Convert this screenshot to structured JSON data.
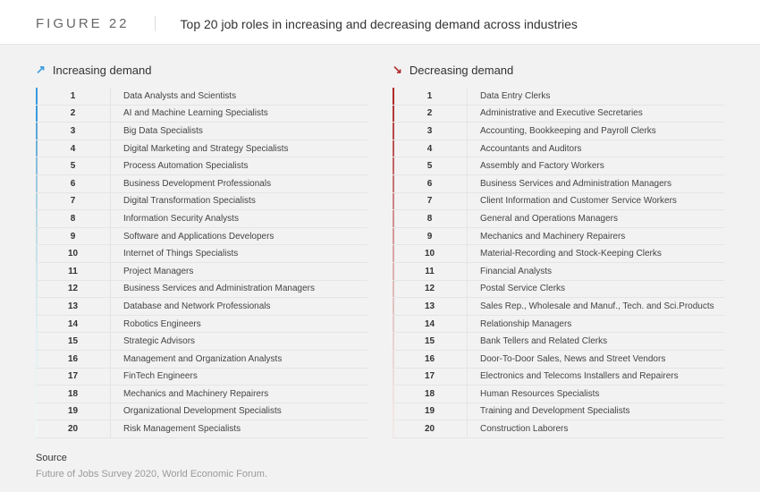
{
  "figure_label": "FIGURE 22",
  "figure_title": "Top 20 job roles in increasing and decreasing demand across industries",
  "increasing": {
    "arrow": "↗",
    "title": "Increasing demand",
    "arrow_color": "#3a9bdc",
    "items": [
      {
        "rank": "1",
        "role": "Data Analysts and Scientists",
        "tick": "#3a9bdc"
      },
      {
        "rank": "2",
        "role": "AI and Machine Learning Specialists",
        "tick": "#3a9bdc"
      },
      {
        "rank": "3",
        "role": "Big Data Specialists",
        "tick": "#5aa8d8"
      },
      {
        "rank": "4",
        "role": "Digital Marketing and Strategy Specialists",
        "tick": "#6fb2da"
      },
      {
        "rank": "5",
        "role": "Process Automation Specialists",
        "tick": "#85bedd"
      },
      {
        "rank": "6",
        "role": "Business Development Professionals",
        "tick": "#9bcae0"
      },
      {
        "rank": "7",
        "role": "Digital Transformation Specialists",
        "tick": "#aad2e3"
      },
      {
        "rank": "8",
        "role": "Information Security Analysts",
        "tick": "#b6d9e6"
      },
      {
        "rank": "9",
        "role": "Software and Applications Developers",
        "tick": "#c0dee8"
      },
      {
        "rank": "10",
        "role": "Internet of Things Specialists",
        "tick": "#c8e2ea"
      },
      {
        "rank": "11",
        "role": "Project Managers",
        "tick": "#cfe6ec"
      },
      {
        "rank": "12",
        "role": "Business Services and Administration Managers",
        "tick": "#d5e9ee"
      },
      {
        "rank": "13",
        "role": "Database and Network Professionals",
        "tick": "#daecef"
      },
      {
        "rank": "14",
        "role": "Robotics Engineers",
        "tick": "#dfeff1"
      },
      {
        "rank": "15",
        "role": "Strategic Advisors",
        "tick": "#e3f1f2"
      },
      {
        "rank": "16",
        "role": "Management and Organization Analysts",
        "tick": "#e6f2f3"
      },
      {
        "rank": "17",
        "role": "FinTech Engineers",
        "tick": "#e9f4f4"
      },
      {
        "rank": "18",
        "role": "Mechanics and Machinery Repairers",
        "tick": "#ecf5f5"
      },
      {
        "rank": "19",
        "role": "Organizational Development Specialists",
        "tick": "#eef6f6"
      },
      {
        "rank": "20",
        "role": "Risk Management Specialists",
        "tick": "#f0f7f7"
      }
    ]
  },
  "decreasing": {
    "arrow": "↘",
    "title": "Decreasing demand",
    "arrow_color": "#b02a2a",
    "items": [
      {
        "rank": "1",
        "role": "Data Entry Clerks",
        "tick": "#b02a2a"
      },
      {
        "rank": "2",
        "role": "Administrative and Executive Secretaries",
        "tick": "#b43838"
      },
      {
        "rank": "3",
        "role": "Accounting,  Bookkeeping and Payroll Clerks",
        "tick": "#b94747"
      },
      {
        "rank": "4",
        "role": "Accountants and Auditors",
        "tick": "#be5656"
      },
      {
        "rank": "5",
        "role": "Assembly and Factory Workers",
        "tick": "#c36565"
      },
      {
        "rank": "6",
        "role": "Business Services and Administration Managers",
        "tick": "#c87474"
      },
      {
        "rank": "7",
        "role": "Client Information and Customer Service Workers",
        "tick": "#cd8282"
      },
      {
        "rank": "8",
        "role": "General and Operations Managers",
        "tick": "#d18f8f"
      },
      {
        "rank": "9",
        "role": "Mechanics and Machinery Repairers",
        "tick": "#d59b9b"
      },
      {
        "rank": "10",
        "role": "Material-Recording and Stock-Keeping Clerks",
        "tick": "#d9a6a6"
      },
      {
        "rank": "11",
        "role": "Financial Analysts",
        "tick": "#ddb1b1"
      },
      {
        "rank": "12",
        "role": "Postal Service Clerks",
        "tick": "#e0baba"
      },
      {
        "rank": "13",
        "role": "Sales Rep., Wholesale and Manuf., Tech. and Sci.Products",
        "tick": "#e3c2c2"
      },
      {
        "rank": "14",
        "role": "Relationship Managers",
        "tick": "#e6caca"
      },
      {
        "rank": "15",
        "role": "Bank Tellers and Related Clerks",
        "tick": "#e9d1d1"
      },
      {
        "rank": "16",
        "role": "Door-To-Door Sales, News and Street Vendors",
        "tick": "#ebd7d7"
      },
      {
        "rank": "17",
        "role": "Electronics and Telecoms Installers and Repairers",
        "tick": "#eddcdc"
      },
      {
        "rank": "18",
        "role": "Human Resources Specialists",
        "tick": "#efe1e1"
      },
      {
        "rank": "19",
        "role": "Training and Development Specialists",
        "tick": "#f1e5e5"
      },
      {
        "rank": "20",
        "role": "Construction Laborers",
        "tick": "#f2e8e8"
      }
    ]
  },
  "source_label": "Source",
  "source_text": "Future of Jobs Survey 2020, World Economic Forum."
}
